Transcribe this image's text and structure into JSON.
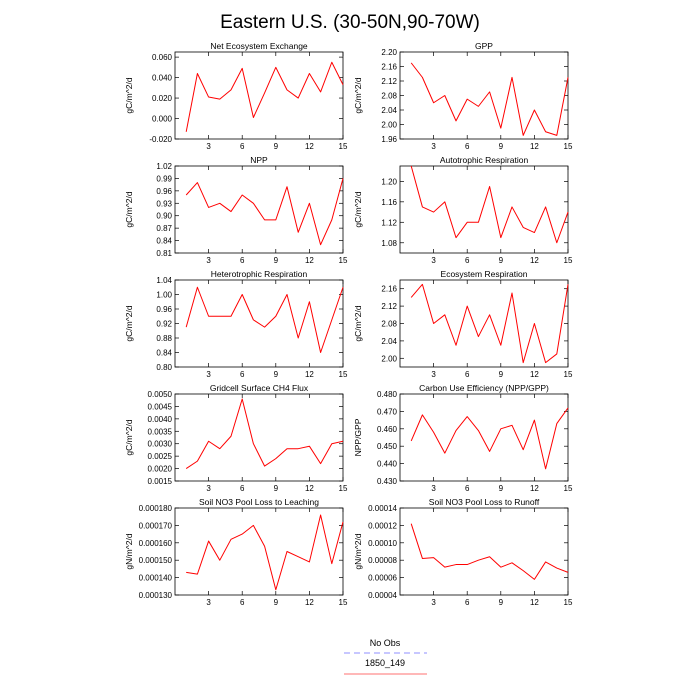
{
  "page": {
    "title": "Eastern U.S. (30-50N,90-70W)"
  },
  "legend": {
    "entries": [
      {
        "label": "No Obs",
        "color": "#8f8fff",
        "dashed": true
      },
      {
        "label": "1850_149",
        "color": "#ff7070",
        "dashed": false
      }
    ]
  },
  "chart_data": [
    {
      "type": "line",
      "title": "Net Ecosystem Exchange",
      "ylabel": "gC/m^2/d",
      "xlim": [
        0,
        15
      ],
      "ylim": [
        -0.02,
        0.065
      ],
      "xticks": [
        3,
        6,
        9,
        12,
        15
      ],
      "xtick_labels": [
        "3",
        "6",
        "9",
        "12",
        "15"
      ],
      "yticks": [
        -0.02,
        0,
        0.02,
        0.04,
        0.06
      ],
      "ytick_labels": [
        "-0.020",
        "0.000",
        "0.020",
        "0.040",
        "0.060"
      ],
      "color": "#ff0000",
      "x": [
        1,
        2,
        3,
        4,
        5,
        6,
        7,
        8,
        9,
        10,
        11,
        12,
        13,
        14,
        15
      ],
      "y": [
        -0.013,
        0.044,
        0.021,
        0.019,
        0.028,
        0.049,
        0.001,
        0.025,
        0.05,
        0.028,
        0.02,
        0.044,
        0.026,
        0.055,
        0.033
      ]
    },
    {
      "type": "line",
      "title": "GPP",
      "ylabel": "gC/m^2/d",
      "xlim": [
        0,
        15
      ],
      "ylim": [
        1.96,
        2.2
      ],
      "xticks": [
        3,
        6,
        9,
        12,
        15
      ],
      "xtick_labels": [
        "3",
        "6",
        "9",
        "12",
        "15"
      ],
      "yticks": [
        1.96,
        2,
        2.04,
        2.08,
        2.12,
        2.16,
        2.2
      ],
      "ytick_labels": [
        "1.96",
        "2.00",
        "2.04",
        "2.08",
        "2.12",
        "2.16",
        "2.20"
      ],
      "color": "#ff0000",
      "x": [
        1,
        2,
        3,
        4,
        5,
        6,
        7,
        8,
        9,
        10,
        11,
        12,
        13,
        14,
        15
      ],
      "y": [
        2.17,
        2.13,
        2.06,
        2.08,
        2.01,
        2.07,
        2.05,
        2.09,
        1.99,
        2.13,
        1.97,
        2.04,
        1.98,
        1.97,
        2.13
      ]
    },
    {
      "type": "line",
      "title": "NPP",
      "ylabel": "gC/m^2/d",
      "xlim": [
        0,
        15
      ],
      "ylim": [
        0.81,
        1.02
      ],
      "xticks": [
        3,
        6,
        9,
        12,
        15
      ],
      "xtick_labels": [
        "3",
        "6",
        "9",
        "12",
        "15"
      ],
      "yticks": [
        0.81,
        0.84,
        0.87,
        0.9,
        0.93,
        0.96,
        0.99,
        1.02
      ],
      "ytick_labels": [
        "0.81",
        "0.84",
        "0.87",
        "0.90",
        "0.93",
        "0.96",
        "0.99",
        "1.02"
      ],
      "color": "#ff0000",
      "x": [
        1,
        2,
        3,
        4,
        5,
        6,
        7,
        8,
        9,
        10,
        11,
        12,
        13,
        14,
        15
      ],
      "y": [
        0.95,
        0.98,
        0.92,
        0.93,
        0.91,
        0.95,
        0.93,
        0.89,
        0.89,
        0.97,
        0.86,
        0.93,
        0.83,
        0.89,
        0.99
      ]
    },
    {
      "type": "line",
      "title": "Autotrophic Respiration",
      "ylabel": "gC/m^2/d",
      "xlim": [
        0,
        15
      ],
      "ylim": [
        1.06,
        1.23
      ],
      "xticks": [
        3,
        6,
        9,
        12,
        15
      ],
      "xtick_labels": [
        "3",
        "6",
        "9",
        "12",
        "15"
      ],
      "yticks": [
        1.08,
        1.12,
        1.16,
        1.2
      ],
      "ytick_labels": [
        "1.08",
        "1.12",
        "1.16",
        "1.20"
      ],
      "color": "#ff0000",
      "x": [
        1,
        2,
        3,
        4,
        5,
        6,
        7,
        8,
        9,
        10,
        11,
        12,
        13,
        14,
        15
      ],
      "y": [
        1.23,
        1.15,
        1.14,
        1.16,
        1.09,
        1.12,
        1.12,
        1.19,
        1.09,
        1.15,
        1.11,
        1.1,
        1.15,
        1.08,
        1.14
      ]
    },
    {
      "type": "line",
      "title": "Heterotrophic Respiration",
      "ylabel": "gC/m^2/d",
      "xlim": [
        0,
        15
      ],
      "ylim": [
        0.8,
        1.04
      ],
      "xticks": [
        3,
        6,
        9,
        12,
        15
      ],
      "xtick_labels": [
        "3",
        "6",
        "9",
        "12",
        "15"
      ],
      "yticks": [
        0.8,
        0.84,
        0.88,
        0.92,
        0.96,
        1,
        1.04
      ],
      "ytick_labels": [
        "0.80",
        "0.84",
        "0.88",
        "0.92",
        "0.96",
        "1.00",
        "1.04"
      ],
      "color": "#ff0000",
      "x": [
        1,
        2,
        3,
        4,
        5,
        6,
        7,
        8,
        9,
        10,
        11,
        12,
        13,
        14,
        15
      ],
      "y": [
        0.91,
        1.02,
        0.94,
        0.94,
        0.94,
        1,
        0.93,
        0.91,
        0.94,
        1,
        0.88,
        0.98,
        0.84,
        0.93,
        1.02
      ]
    },
    {
      "type": "line",
      "title": "Ecosystem Respiration",
      "ylabel": "gC/m^2/d",
      "xlim": [
        0,
        15
      ],
      "ylim": [
        1.98,
        2.18
      ],
      "xticks": [
        3,
        6,
        9,
        12,
        15
      ],
      "xtick_labels": [
        "3",
        "6",
        "9",
        "12",
        "15"
      ],
      "yticks": [
        2,
        2.04,
        2.08,
        2.12,
        2.16
      ],
      "ytick_labels": [
        "2.00",
        "2.04",
        "2.08",
        "2.12",
        "2.16"
      ],
      "color": "#ff0000",
      "x": [
        1,
        2,
        3,
        4,
        5,
        6,
        7,
        8,
        9,
        10,
        11,
        12,
        13,
        14,
        15
      ],
      "y": [
        2.14,
        2.17,
        2.08,
        2.1,
        2.03,
        2.12,
        2.05,
        2.1,
        2.03,
        2.15,
        1.99,
        2.08,
        1.99,
        2.01,
        2.17
      ]
    },
    {
      "type": "line",
      "title": "Gridcell Surface CH4 Flux",
      "ylabel": "gC/m^2/d",
      "xlim": [
        0,
        15
      ],
      "ylim": [
        0.0015,
        0.005
      ],
      "xticks": [
        3,
        6,
        9,
        12,
        15
      ],
      "xtick_labels": [
        "3",
        "6",
        "9",
        "12",
        "15"
      ],
      "yticks": [
        0.0015,
        0.002,
        0.0025,
        0.003,
        0.0035,
        0.004,
        0.0045,
        0.005
      ],
      "ytick_labels": [
        "0.0015",
        "0.0020",
        "0.0025",
        "0.0030",
        "0.0035",
        "0.0040",
        "0.0045",
        "0.0050"
      ],
      "color": "#ff0000",
      "x": [
        1,
        2,
        3,
        4,
        5,
        6,
        7,
        8,
        9,
        10,
        11,
        12,
        13,
        14,
        15
      ],
      "y": [
        0.002,
        0.0023,
        0.0031,
        0.0028,
        0.0033,
        0.0048,
        0.003,
        0.0021,
        0.0024,
        0.0028,
        0.0028,
        0.0029,
        0.0022,
        0.003,
        0.0031
      ]
    },
    {
      "type": "line",
      "title": "Carbon Use Efficiency (NPP/GPP)",
      "ylabel": "NPP/GPP",
      "xlim": [
        0,
        15
      ],
      "ylim": [
        0.43,
        0.48
      ],
      "xticks": [
        3,
        6,
        9,
        12,
        15
      ],
      "xtick_labels": [
        "3",
        "6",
        "9",
        "12",
        "15"
      ],
      "yticks": [
        0.43,
        0.44,
        0.45,
        0.46,
        0.47,
        0.48
      ],
      "ytick_labels": [
        "0.430",
        "0.440",
        "0.450",
        "0.460",
        "0.470",
        "0.480"
      ],
      "color": "#ff0000",
      "x": [
        1,
        2,
        3,
        4,
        5,
        6,
        7,
        8,
        9,
        10,
        11,
        12,
        13,
        14,
        15
      ],
      "y": [
        0.453,
        0.468,
        0.458,
        0.446,
        0.459,
        0.467,
        0.459,
        0.447,
        0.46,
        0.462,
        0.448,
        0.465,
        0.437,
        0.463,
        0.472
      ]
    },
    {
      "type": "line",
      "title": "Soil NO3 Pool Loss to Leaching",
      "ylabel": "gN/m^2/d",
      "xlim": [
        0,
        15
      ],
      "ylim": [
        0.00013,
        0.00018
      ],
      "xticks": [
        3,
        6,
        9,
        12,
        15
      ],
      "xtick_labels": [
        "3",
        "6",
        "9",
        "12",
        "15"
      ],
      "yticks": [
        0.00013,
        0.00014,
        0.00015,
        0.00016,
        0.00017,
        0.00018
      ],
      "ytick_labels": [
        "0.000130",
        "0.000140",
        "0.000150",
        "0.000160",
        "0.000170",
        "0.000180"
      ],
      "color": "#ff0000",
      "x": [
        1,
        2,
        3,
        4,
        5,
        6,
        7,
        8,
        9,
        10,
        11,
        12,
        13,
        14,
        15
      ],
      "y": [
        0.000143,
        0.000142,
        0.000161,
        0.00015,
        0.000162,
        0.000165,
        0.00017,
        0.000158,
        0.000133,
        0.000155,
        0.000152,
        0.000149,
        0.000176,
        0.000148,
        0.000172
      ]
    },
    {
      "type": "line",
      "title": "Soil NO3 Pool Loss to Runoff",
      "ylabel": "gN/m^2/d",
      "xlim": [
        0,
        15
      ],
      "ylim": [
        4e-05,
        0.00014
      ],
      "xticks": [
        3,
        6,
        9,
        12,
        15
      ],
      "xtick_labels": [
        "3",
        "6",
        "9",
        "12",
        "15"
      ],
      "yticks": [
        4e-05,
        6e-05,
        8e-05,
        0.0001,
        0.00012,
        0.00014
      ],
      "ytick_labels": [
        "0.00004",
        "0.00006",
        "0.00008",
        "0.00010",
        "0.00012",
        "0.00014"
      ],
      "color": "#ff0000",
      "x": [
        1,
        2,
        3,
        4,
        5,
        6,
        7,
        8,
        9,
        10,
        11,
        12,
        13,
        14,
        15
      ],
      "y": [
        0.000122,
        8.2e-05,
        8.3e-05,
        7.2e-05,
        7.5e-05,
        7.5e-05,
        8e-05,
        8.4e-05,
        7.2e-05,
        7.7e-05,
        6.8e-05,
        5.8e-05,
        7.8e-05,
        7.1e-05,
        6.6e-05
      ]
    }
  ]
}
